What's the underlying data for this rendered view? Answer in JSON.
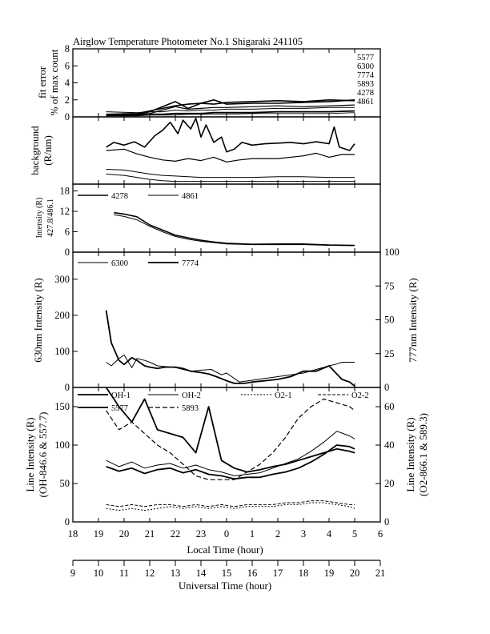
{
  "title": "Airglow Temperature Photometer No.1  Shigaraki  241105",
  "colors": {
    "ink": "#000000",
    "background": "#ffffff"
  },
  "x_axes": {
    "local": {
      "label": "Local Time (hour)",
      "ticks": [
        "18",
        "19",
        "20",
        "21",
        "22",
        "23",
        "0",
        "1",
        "2",
        "3",
        "4",
        "5",
        "6"
      ]
    },
    "universal": {
      "label": "Universal Time (hour)",
      "ticks": [
        "9",
        "10",
        "11",
        "12",
        "13",
        "14",
        "15",
        "16",
        "17",
        "18",
        "19",
        "20",
        "21"
      ]
    }
  },
  "chart_data": [
    {
      "id": "fit_error",
      "type": "line",
      "ylabel_lines": [
        "fit error",
        "% of max count"
      ],
      "ylim": [
        0,
        8
      ],
      "yticks": [
        "0",
        "2",
        "4",
        "6",
        "8"
      ],
      "legend": [
        "5577",
        "6300",
        "7774",
        "5893",
        "4278",
        "4861"
      ],
      "x_local_hours": [
        19.3,
        20.5,
        21.0,
        21.5,
        22.0,
        22.5,
        23.0,
        23.5,
        24.0,
        25.0,
        26.0,
        27.0,
        28.0,
        29.0
      ],
      "series": [
        {
          "name": "5577",
          "values": [
            0.3,
            0.4,
            0.7,
            1.0,
            1.3,
            1.5,
            1.6,
            1.5,
            1.7,
            1.8,
            1.9,
            1.8,
            2.0,
            1.9
          ]
        },
        {
          "name": "6300",
          "values": [
            0.2,
            0.3,
            0.6,
            1.2,
            1.8,
            1.0,
            1.6,
            2.0,
            1.5,
            1.6,
            1.6,
            1.7,
            1.8,
            2.0
          ]
        },
        {
          "name": "7774",
          "values": [
            0.2,
            0.3,
            0.4,
            0.8,
            1.2,
            0.9,
            1.0,
            1.1,
            1.1,
            1.2,
            1.3,
            1.2,
            1.3,
            1.4
          ]
        },
        {
          "name": "5893",
          "values": [
            0.6,
            0.5,
            0.6,
            0.6,
            0.8,
            0.7,
            0.8,
            0.8,
            0.9,
            0.9,
            1.0,
            1.0,
            1.1,
            1.1
          ]
        },
        {
          "name": "4278",
          "values": [
            0.2,
            0.2,
            0.3,
            0.3,
            0.4,
            0.4,
            0.4,
            0.5,
            0.5,
            0.5,
            0.6,
            0.6,
            0.6,
            0.7
          ]
        },
        {
          "name": "4861",
          "values": [
            0.1,
            0.1,
            0.2,
            0.2,
            0.2,
            0.3,
            0.3,
            0.3,
            0.3,
            0.4,
            0.4,
            0.4,
            0.4,
            0.5
          ]
        }
      ]
    },
    {
      "id": "background",
      "type": "line",
      "ylabel_lines": [
        "background",
        "(R/nm)"
      ],
      "series": [
        {
          "name": "bg-1",
          "x_local_hours": [
            19.3,
            19.6,
            20.0,
            20.4,
            20.8,
            21.2,
            21.5,
            21.8,
            22.1,
            22.3,
            22.6,
            22.8,
            23.0,
            23.2,
            23.5,
            23.8,
            24.0,
            24.3,
            24.6,
            25.0,
            25.5,
            26.0,
            26.5,
            27.0,
            27.5,
            28.0,
            28.2,
            28.4,
            28.8,
            29.0
          ],
          "values": [
            0.55,
            0.62,
            0.58,
            0.63,
            0.55,
            0.72,
            0.8,
            0.92,
            0.75,
            0.95,
            0.82,
            0.98,
            0.7,
            0.88,
            0.62,
            0.7,
            0.48,
            0.52,
            0.62,
            0.58,
            0.6,
            0.61,
            0.62,
            0.6,
            0.63,
            0.6,
            0.85,
            0.55,
            0.5,
            0.6
          ]
        },
        {
          "name": "bg-2",
          "x_local_hours": [
            19.3,
            20.0,
            20.5,
            21.0,
            21.5,
            22.0,
            22.5,
            23.0,
            23.5,
            24.0,
            24.5,
            25.0,
            26.0,
            27.0,
            27.5,
            28.0,
            28.5,
            29.0
          ],
          "values": [
            0.5,
            0.52,
            0.45,
            0.4,
            0.36,
            0.34,
            0.38,
            0.35,
            0.4,
            0.33,
            0.36,
            0.38,
            0.38,
            0.42,
            0.46,
            0.4,
            0.44,
            0.44
          ]
        },
        {
          "name": "bg-3",
          "x_local_hours": [
            19.3,
            20.0,
            20.5,
            21.0,
            21.5,
            22.0,
            22.5,
            23.0,
            24.0,
            25.0,
            26.0,
            27.0,
            28.0,
            29.0
          ],
          "values": [
            0.22,
            0.21,
            0.18,
            0.15,
            0.13,
            0.12,
            0.11,
            0.1,
            0.1,
            0.1,
            0.11,
            0.11,
            0.1,
            0.1
          ]
        },
        {
          "name": "bg-4",
          "x_local_hours": [
            19.3,
            20.0,
            20.5,
            21.0,
            21.5,
            22.0,
            23.0,
            24.0,
            25.0,
            26.0,
            27.0,
            28.0,
            29.0
          ],
          "values": [
            0.15,
            0.13,
            0.1,
            0.07,
            0.05,
            0.04,
            0.04,
            0.04,
            0.04,
            0.04,
            0.04,
            0.04,
            0.04
          ]
        }
      ]
    },
    {
      "id": "intensity_4278_4861",
      "type": "line",
      "ylabel_lines": [
        "Intensity (R)",
        "427.8/486.1"
      ],
      "ylim": [
        0,
        20
      ],
      "yticks": [
        "0",
        "6",
        "12",
        "18"
      ],
      "legend": [
        "4278",
        "4861"
      ],
      "x_local_hours": [
        19.6,
        20.0,
        20.5,
        21.0,
        21.5,
        22.0,
        22.5,
        23.0,
        23.5,
        24.0,
        25.0,
        26.0,
        27.0,
        28.0,
        29.0
      ],
      "series": [
        {
          "name": "4278",
          "values": [
            11.6,
            11.2,
            10.4,
            8.0,
            6.5,
            5.0,
            4.2,
            3.5,
            3.0,
            2.6,
            2.3,
            2.4,
            2.4,
            2.1,
            2.0
          ]
        },
        {
          "name": "4861",
          "values": [
            11.0,
            10.5,
            9.5,
            7.6,
            6.0,
            4.6,
            3.8,
            3.2,
            2.8,
            2.4,
            2.2,
            2.2,
            2.2,
            2.0,
            1.9
          ]
        }
      ]
    },
    {
      "id": "intensity_630_777",
      "type": "line",
      "ylabel_left": "630nm Intensity (R)",
      "ylabel_right": "777nm Intensity (R)",
      "ylim_left": [
        0,
        375
      ],
      "ylim_right": [
        0,
        100
      ],
      "yticks_left": [
        "0",
        "100",
        "200",
        "300"
      ],
      "yticks_right": [
        "0",
        "25",
        "50",
        "75",
        "100"
      ],
      "legend": [
        "6300",
        "7774"
      ],
      "series": [
        {
          "name": "6300",
          "axis": "left",
          "x_local_hours": [
            19.3,
            19.5,
            19.8,
            20.0,
            20.3,
            20.5,
            20.8,
            21.0,
            21.3,
            21.6,
            22.0,
            22.3,
            22.6,
            23.0,
            23.4,
            23.8,
            24.0,
            24.5,
            25.0,
            25.5,
            26.0,
            26.5,
            27.0,
            27.5,
            28.0,
            28.3,
            28.5,
            29.0
          ],
          "values": [
            70,
            60,
            80,
            90,
            55,
            80,
            75,
            70,
            60,
            58,
            55,
            50,
            45,
            48,
            50,
            35,
            40,
            15,
            20,
            25,
            30,
            35,
            40,
            50,
            60,
            65,
            70,
            70
          ]
        },
        {
          "name": "7774",
          "axis": "right",
          "x_local_hours": [
            19.3,
            19.5,
            19.8,
            20.0,
            20.3,
            20.5,
            20.8,
            21.0,
            21.3,
            21.6,
            22.0,
            22.3,
            22.6,
            23.0,
            23.3,
            23.6,
            24.0,
            24.3,
            24.7,
            25.0,
            25.5,
            26.0,
            26.5,
            27.0,
            27.3,
            27.5,
            28.0,
            28.3,
            28.5,
            28.8,
            29.0
          ],
          "values": [
            57,
            33,
            20,
            17,
            22,
            20,
            16,
            15,
            14,
            15,
            15,
            14,
            12,
            11,
            10,
            8,
            5,
            3,
            3,
            4,
            5,
            6,
            8,
            12,
            12,
            12,
            16,
            10,
            6,
            4,
            1
          ]
        }
      ]
    },
    {
      "id": "line_intensity_oh_o2",
      "type": "line",
      "ylabel_left_lines": [
        "Line Intensity (R)",
        "(OH-846.6 & 557.7)"
      ],
      "ylabel_right_lines": [
        "Line Intensity (R)",
        "(O2-866.1 & 589.3)"
      ],
      "ylim_left": [
        0,
        175
      ],
      "ylim_right": [
        0,
        70
      ],
      "yticks_left": [
        "0",
        "50",
        "100",
        "150"
      ],
      "yticks_right": [
        "0",
        "20",
        "40",
        "60"
      ],
      "legend": [
        "OH-1",
        "OH-2",
        "O2-1",
        "O2-2",
        "5577",
        "5893"
      ],
      "x_local_hours": [
        19.3,
        19.8,
        20.3,
        20.8,
        21.3,
        21.8,
        22.3,
        22.8,
        23.3,
        23.8,
        24.3,
        24.8,
        25.3,
        25.8,
        26.3,
        26.8,
        27.3,
        27.8,
        28.3,
        28.8,
        29.0
      ],
      "series": [
        {
          "name": "OH-1",
          "axis": "left",
          "values": [
            72,
            66,
            70,
            63,
            68,
            70,
            64,
            68,
            62,
            60,
            56,
            58,
            58,
            62,
            65,
            70,
            78,
            88,
            100,
            98,
            95
          ]
        },
        {
          "name": "OH-2",
          "axis": "left",
          "values": [
            80,
            72,
            78,
            70,
            74,
            76,
            70,
            74,
            68,
            65,
            60,
            62,
            64,
            70,
            76,
            82,
            92,
            104,
            118,
            112,
            108
          ]
        },
        {
          "name": "O2-1",
          "axis": "right",
          "values": [
            7,
            6,
            7,
            6,
            7,
            8,
            7,
            8,
            7,
            8,
            7,
            8,
            8,
            8,
            9,
            9,
            10,
            10,
            9,
            8,
            7
          ]
        },
        {
          "name": "O2-2",
          "axis": "right",
          "values": [
            9,
            8,
            9,
            8,
            9,
            9,
            8,
            9,
            8,
            9,
            8,
            9,
            9,
            9,
            10,
            10,
            11,
            11,
            10,
            9,
            9
          ]
        },
        {
          "name": "5577",
          "axis": "left",
          "values": [
            175,
            150,
            130,
            160,
            120,
            115,
            110,
            90,
            150,
            80,
            70,
            65,
            68,
            72,
            75,
            80,
            85,
            90,
            95,
            92,
            90
          ]
        },
        {
          "name": "5893",
          "axis": "right",
          "values": [
            58,
            48,
            52,
            46,
            40,
            36,
            30,
            24,
            22,
            22,
            22,
            26,
            30,
            36,
            44,
            54,
            60,
            64,
            62,
            60,
            58
          ]
        }
      ]
    }
  ]
}
